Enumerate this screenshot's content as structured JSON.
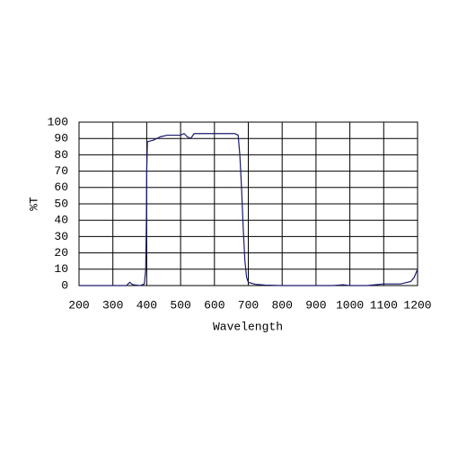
{
  "chart_data": {
    "type": "line",
    "xlabel": "Wavelength",
    "ylabel": "%T",
    "x": [
      200,
      250,
      300,
      340,
      350,
      355,
      360,
      380,
      393,
      397,
      399,
      400,
      402,
      420,
      440,
      460,
      500,
      510,
      520,
      530,
      540,
      600,
      660,
      670,
      675,
      680,
      685,
      690,
      695,
      700,
      720,
      750,
      800,
      850,
      900,
      950,
      980,
      1000,
      1050,
      1100,
      1150,
      1180,
      1190,
      1200
    ],
    "values": [
      0,
      0,
      0,
      0,
      2,
      1,
      0.5,
      0,
      1,
      10,
      40,
      70,
      88,
      89,
      91,
      92,
      92,
      93,
      91,
      90,
      93,
      93,
      93,
      92,
      80,
      60,
      35,
      15,
      5,
      2,
      0.8,
      0.3,
      0,
      0,
      0,
      0,
      0.5,
      0,
      0,
      1,
      1,
      2.5,
      5,
      10
    ],
    "color": "#1a1a6e",
    "xlim": [
      200,
      1200
    ],
    "xticks": [
      200,
      300,
      400,
      500,
      600,
      700,
      800,
      900,
      1000,
      1100,
      1200
    ],
    "ylim": [
      0,
      100
    ],
    "yticks": [
      0,
      10,
      20,
      30,
      40,
      50,
      60,
      70,
      80,
      90,
      100
    ],
    "grid": true
  }
}
